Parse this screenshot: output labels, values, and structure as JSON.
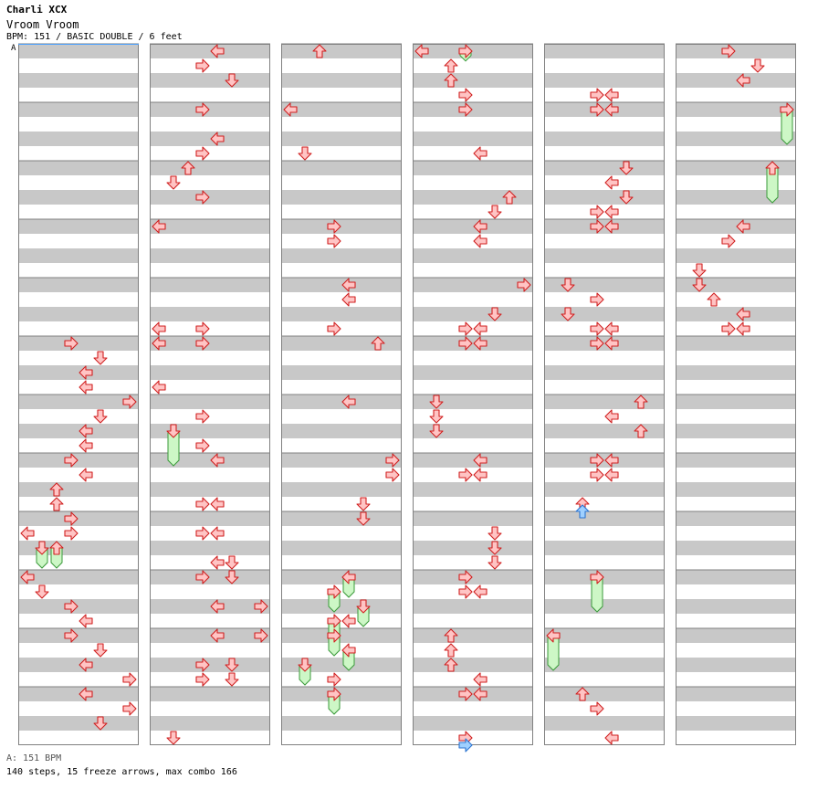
{
  "song": {
    "artist": "Charli XCX",
    "title": "Vroom Vroom",
    "info": "BPM: 151 / BASIC DOUBLE / 6 feet"
  },
  "bpm_marker": "A",
  "footer": {
    "bpm_legend": "A: 151 BPM",
    "stats": "140 steps, 15 freeze arrows, max combo 166"
  },
  "colors": {
    "tap_fill": "#ffc4c4",
    "tap_stroke": "#d02020",
    "freeze_fill": "#cdf7c6",
    "freeze_stroke": "#3a9a3a",
    "alt_fill": "#9fd0ff",
    "alt_stroke": "#2c74d0",
    "band_grey": "#c8c8c8",
    "border": "#808080",
    "bpm_line": "#4aa0ff"
  },
  "chart_data": {
    "type": "step-chart",
    "mode": "BASIC DOUBLE",
    "columns": 6,
    "measures_per_column": 12,
    "lanes": [
      "left",
      "down",
      "up",
      "right",
      "left",
      "down",
      "up",
      "right"
    ],
    "notes": [
      {
        "c": 0,
        "m": 5,
        "b": 0,
        "l": 3
      },
      {
        "c": 0,
        "m": 5,
        "b": 1,
        "l": 5
      },
      {
        "c": 0,
        "m": 5,
        "b": 2,
        "l": 4
      },
      {
        "c": 0,
        "m": 5,
        "b": 3,
        "l": 4
      },
      {
        "c": 0,
        "m": 6,
        "b": 0,
        "l": 7
      },
      {
        "c": 0,
        "m": 6,
        "b": 1,
        "l": 5
      },
      {
        "c": 0,
        "m": 6,
        "b": 2,
        "l": 4
      },
      {
        "c": 0,
        "m": 6,
        "b": 3,
        "l": 4
      },
      {
        "c": 0,
        "m": 7,
        "b": 0,
        "l": 3
      },
      {
        "c": 0,
        "m": 7,
        "b": 1,
        "l": 4
      },
      {
        "c": 0,
        "m": 7,
        "b": 2,
        "l": 2
      },
      {
        "c": 0,
        "m": 7,
        "b": 3,
        "l": 2
      },
      {
        "c": 0,
        "m": 8,
        "b": 0,
        "l": 3
      },
      {
        "c": 0,
        "m": 8,
        "b": 1,
        "l": 0
      },
      {
        "c": 0,
        "m": 8,
        "b": 1,
        "l": 3
      },
      {
        "c": 0,
        "m": 8,
        "b": 2,
        "l": 1,
        "len": 1
      },
      {
        "c": 0,
        "m": 8,
        "b": 2,
        "l": 2,
        "len": 1
      },
      {
        "c": 0,
        "m": 9,
        "b": 0,
        "l": 0
      },
      {
        "c": 0,
        "m": 9,
        "b": 1,
        "l": 1
      },
      {
        "c": 0,
        "m": 9,
        "b": 2,
        "l": 3
      },
      {
        "c": 0,
        "m": 9,
        "b": 3,
        "l": 4
      },
      {
        "c": 0,
        "m": 10,
        "b": 0,
        "l": 3
      },
      {
        "c": 0,
        "m": 10,
        "b": 1,
        "l": 5
      },
      {
        "c": 0,
        "m": 10,
        "b": 2,
        "l": 4
      },
      {
        "c": 0,
        "m": 10,
        "b": 3,
        "l": 7
      },
      {
        "c": 0,
        "m": 11,
        "b": 0,
        "l": 4
      },
      {
        "c": 0,
        "m": 11,
        "b": 1,
        "l": 7
      },
      {
        "c": 0,
        "m": 11,
        "b": 2,
        "l": 5
      },
      {
        "c": 1,
        "m": 0,
        "b": 0,
        "l": 4
      },
      {
        "c": 1,
        "m": 0,
        "b": 1,
        "l": 3
      },
      {
        "c": 1,
        "m": 0,
        "b": 2,
        "l": 5
      },
      {
        "c": 1,
        "m": 1,
        "b": 0,
        "l": 3
      },
      {
        "c": 1,
        "m": 1,
        "b": 2,
        "l": 4
      },
      {
        "c": 1,
        "m": 1,
        "b": 3,
        "l": 3
      },
      {
        "c": 1,
        "m": 2,
        "b": 0,
        "l": 2
      },
      {
        "c": 1,
        "m": 2,
        "b": 1,
        "l": 1
      },
      {
        "c": 1,
        "m": 2,
        "b": 2,
        "l": 3
      },
      {
        "c": 1,
        "m": 3,
        "b": 0,
        "l": 0
      },
      {
        "c": 1,
        "m": 4,
        "b": 3,
        "l": 0
      },
      {
        "c": 1,
        "m": 4,
        "b": 3,
        "l": 3
      },
      {
        "c": 1,
        "m": 5,
        "b": 0,
        "l": 0
      },
      {
        "c": 1,
        "m": 5,
        "b": 0,
        "l": 3
      },
      {
        "c": 1,
        "m": 5,
        "b": 3,
        "l": 0
      },
      {
        "c": 1,
        "m": 6,
        "b": 1,
        "l": 3
      },
      {
        "c": 1,
        "m": 6,
        "b": 2,
        "l": 1,
        "len": 2
      },
      {
        "c": 1,
        "m": 6,
        "b": 3,
        "l": 3
      },
      {
        "c": 1,
        "m": 7,
        "b": 0,
        "l": 4
      },
      {
        "c": 1,
        "m": 7,
        "b": 3,
        "l": 3
      },
      {
        "c": 1,
        "m": 7,
        "b": 3,
        "l": 4
      },
      {
        "c": 1,
        "m": 8,
        "b": 1,
        "l": 3
      },
      {
        "c": 1,
        "m": 8,
        "b": 1,
        "l": 4
      },
      {
        "c": 1,
        "m": 8,
        "b": 3,
        "l": 4
      },
      {
        "c": 1,
        "m": 8,
        "b": 3,
        "l": 5
      },
      {
        "c": 1,
        "m": 9,
        "b": 0,
        "l": 3
      },
      {
        "c": 1,
        "m": 9,
        "b": 0,
        "l": 5
      },
      {
        "c": 1,
        "m": 9,
        "b": 2,
        "l": 4
      },
      {
        "c": 1,
        "m": 9,
        "b": 2,
        "l": 7
      },
      {
        "c": 1,
        "m": 10,
        "b": 0,
        "l": 4
      },
      {
        "c": 1,
        "m": 10,
        "b": 0,
        "l": 7
      },
      {
        "c": 1,
        "m": 10,
        "b": 2,
        "l": 3
      },
      {
        "c": 1,
        "m": 10,
        "b": 2,
        "l": 5
      },
      {
        "c": 1,
        "m": 10,
        "b": 3,
        "l": 3
      },
      {
        "c": 1,
        "m": 10,
        "b": 3,
        "l": 5
      },
      {
        "c": 1,
        "m": 11,
        "b": 3,
        "l": 1
      },
      {
        "c": 2,
        "m": 0,
        "b": 0,
        "l": 2
      },
      {
        "c": 2,
        "m": 1,
        "b": 0,
        "l": 0
      },
      {
        "c": 2,
        "m": 1,
        "b": 3,
        "l": 1
      },
      {
        "c": 2,
        "m": 3,
        "b": 0,
        "l": 3
      },
      {
        "c": 2,
        "m": 3,
        "b": 1,
        "l": 3
      },
      {
        "c": 2,
        "m": 4,
        "b": 0,
        "l": 4
      },
      {
        "c": 2,
        "m": 4,
        "b": 1,
        "l": 4
      },
      {
        "c": 2,
        "m": 4,
        "b": 3,
        "l": 3
      },
      {
        "c": 2,
        "m": 5,
        "b": 0,
        "l": 6
      },
      {
        "c": 2,
        "m": 6,
        "b": 0,
        "l": 4
      },
      {
        "c": 2,
        "m": 7,
        "b": 0,
        "l": 7
      },
      {
        "c": 2,
        "m": 7,
        "b": 1,
        "l": 7
      },
      {
        "c": 2,
        "m": 7,
        "b": 3,
        "l": 5
      },
      {
        "c": 2,
        "m": 8,
        "b": 0,
        "l": 5
      },
      {
        "c": 2,
        "m": 9,
        "b": 0,
        "l": 4,
        "len": 1
      },
      {
        "c": 2,
        "m": 9,
        "b": 1,
        "l": 3,
        "len": 1
      },
      {
        "c": 2,
        "m": 9,
        "b": 2,
        "l": 5,
        "len": 1
      },
      {
        "c": 2,
        "m": 9,
        "b": 3,
        "l": 3,
        "len": 1
      },
      {
        "c": 2,
        "m": 9,
        "b": 3,
        "l": 4
      },
      {
        "c": 2,
        "m": 10,
        "b": 0,
        "l": 3,
        "len": 1
      },
      {
        "c": 2,
        "m": 10,
        "b": 1,
        "l": 4,
        "len": 1
      },
      {
        "c": 2,
        "m": 10,
        "b": 2,
        "l": 1,
        "len": 1
      },
      {
        "c": 2,
        "m": 10,
        "b": 3,
        "l": 3
      },
      {
        "c": 2,
        "m": 10,
        "b": 4,
        "l": 3,
        "len": 1
      },
      {
        "c": 3,
        "m": 0,
        "b": 0,
        "l": 0
      },
      {
        "c": 3,
        "m": 0,
        "b": 0,
        "l": 3,
        "len": 0.3
      },
      {
        "c": 3,
        "m": 0,
        "b": 1,
        "l": 2
      },
      {
        "c": 3,
        "m": 0,
        "b": 2,
        "l": 2
      },
      {
        "c": 3,
        "m": 0,
        "b": 3,
        "l": 3
      },
      {
        "c": 3,
        "m": 1,
        "b": 0,
        "l": 3
      },
      {
        "c": 3,
        "m": 1,
        "b": 3,
        "l": 4
      },
      {
        "c": 3,
        "m": 2,
        "b": 2,
        "l": 6
      },
      {
        "c": 3,
        "m": 2,
        "b": 3,
        "l": 5
      },
      {
        "c": 3,
        "m": 3,
        "b": 0,
        "l": 4
      },
      {
        "c": 3,
        "m": 3,
        "b": 1,
        "l": 4
      },
      {
        "c": 3,
        "m": 4,
        "b": 0,
        "l": 7
      },
      {
        "c": 3,
        "m": 4,
        "b": 2,
        "l": 5
      },
      {
        "c": 3,
        "m": 4,
        "b": 3,
        "l": 3
      },
      {
        "c": 3,
        "m": 4,
        "b": 3,
        "l": 4
      },
      {
        "c": 3,
        "m": 5,
        "b": 0,
        "l": 3
      },
      {
        "c": 3,
        "m": 5,
        "b": 0,
        "l": 4
      },
      {
        "c": 3,
        "m": 6,
        "b": 0,
        "l": 1
      },
      {
        "c": 3,
        "m": 6,
        "b": 1,
        "l": 1
      },
      {
        "c": 3,
        "m": 6,
        "b": 2,
        "l": 1
      },
      {
        "c": 3,
        "m": 7,
        "b": 0,
        "l": 4
      },
      {
        "c": 3,
        "m": 7,
        "b": 1,
        "l": 3
      },
      {
        "c": 3,
        "m": 7,
        "b": 1,
        "l": 4
      },
      {
        "c": 3,
        "m": 8,
        "b": 1,
        "l": 5
      },
      {
        "c": 3,
        "m": 8,
        "b": 2,
        "l": 5
      },
      {
        "c": 3,
        "m": 8,
        "b": 3,
        "l": 5
      },
      {
        "c": 3,
        "m": 9,
        "b": 0,
        "l": 3
      },
      {
        "c": 3,
        "m": 9,
        "b": 1,
        "l": 3
      },
      {
        "c": 3,
        "m": 9,
        "b": 1,
        "l": 4
      },
      {
        "c": 3,
        "m": 10,
        "b": 0,
        "l": 2
      },
      {
        "c": 3,
        "m": 10,
        "b": 1,
        "l": 2
      },
      {
        "c": 3,
        "m": 10,
        "b": 2,
        "l": 2
      },
      {
        "c": 3,
        "m": 10,
        "b": 3,
        "l": 4
      },
      {
        "c": 3,
        "m": 11,
        "b": 0,
        "l": 3
      },
      {
        "c": 3,
        "m": 11,
        "b": 0,
        "l": 4
      },
      {
        "c": 3,
        "m": 11,
        "b": 3,
        "l": 3
      },
      {
        "c": 3,
        "m": 11,
        "b": 3.5,
        "l": 3,
        "alt": true
      },
      {
        "c": 4,
        "m": 0,
        "b": 3,
        "l": 3
      },
      {
        "c": 4,
        "m": 0,
        "b": 3,
        "l": 4
      },
      {
        "c": 4,
        "m": 1,
        "b": 0,
        "l": 3
      },
      {
        "c": 4,
        "m": 1,
        "b": 0,
        "l": 4
      },
      {
        "c": 4,
        "m": 2,
        "b": 0,
        "l": 5
      },
      {
        "c": 4,
        "m": 2,
        "b": 1,
        "l": 4
      },
      {
        "c": 4,
        "m": 2,
        "b": 2,
        "l": 5
      },
      {
        "c": 4,
        "m": 2,
        "b": 3,
        "l": 3
      },
      {
        "c": 4,
        "m": 2,
        "b": 3,
        "l": 4
      },
      {
        "c": 4,
        "m": 3,
        "b": 0,
        "l": 3
      },
      {
        "c": 4,
        "m": 3,
        "b": 0,
        "l": 4
      },
      {
        "c": 4,
        "m": 4,
        "b": 0,
        "l": 1
      },
      {
        "c": 4,
        "m": 4,
        "b": 1,
        "l": 3
      },
      {
        "c": 4,
        "m": 4,
        "b": 2,
        "l": 1
      },
      {
        "c": 4,
        "m": 4,
        "b": 3,
        "l": 3
      },
      {
        "c": 4,
        "m": 4,
        "b": 3,
        "l": 4
      },
      {
        "c": 4,
        "m": 5,
        "b": 0,
        "l": 3
      },
      {
        "c": 4,
        "m": 5,
        "b": 0,
        "l": 4
      },
      {
        "c": 4,
        "m": 6,
        "b": 0,
        "l": 6
      },
      {
        "c": 4,
        "m": 6,
        "b": 1,
        "l": 4
      },
      {
        "c": 4,
        "m": 6,
        "b": 2,
        "l": 6
      },
      {
        "c": 4,
        "m": 7,
        "b": 0,
        "l": 3
      },
      {
        "c": 4,
        "m": 7,
        "b": 0,
        "l": 4
      },
      {
        "c": 4,
        "m": 7,
        "b": 1,
        "l": 3
      },
      {
        "c": 4,
        "m": 7,
        "b": 1,
        "l": 4
      },
      {
        "c": 4,
        "m": 7,
        "b": 3,
        "l": 2
      },
      {
        "c": 4,
        "m": 7,
        "b": 3.5,
        "l": 2,
        "alt": true
      },
      {
        "c": 4,
        "m": 9,
        "b": 0,
        "l": 3,
        "len": 2
      },
      {
        "c": 4,
        "m": 10,
        "b": 0,
        "l": 0,
        "len": 2
      },
      {
        "c": 4,
        "m": 11,
        "b": 0,
        "l": 2
      },
      {
        "c": 4,
        "m": 11,
        "b": 1,
        "l": 3
      },
      {
        "c": 4,
        "m": 11,
        "b": 3,
        "l": 4
      },
      {
        "c": 5,
        "m": 0,
        "b": 0,
        "l": 3
      },
      {
        "c": 5,
        "m": 0,
        "b": 1,
        "l": 5
      },
      {
        "c": 5,
        "m": 0,
        "b": 2,
        "l": 4
      },
      {
        "c": 5,
        "m": 1,
        "b": 0,
        "l": 7,
        "len": 2
      },
      {
        "c": 5,
        "m": 2,
        "b": 0,
        "l": 6,
        "len": 2
      },
      {
        "c": 5,
        "m": 3,
        "b": 0,
        "l": 4
      },
      {
        "c": 5,
        "m": 3,
        "b": 1,
        "l": 3
      },
      {
        "c": 5,
        "m": 3,
        "b": 3,
        "l": 1
      },
      {
        "c": 5,
        "m": 4,
        "b": 0,
        "l": 1
      },
      {
        "c": 5,
        "m": 4,
        "b": 1,
        "l": 2
      },
      {
        "c": 5,
        "m": 4,
        "b": 2,
        "l": 4
      },
      {
        "c": 5,
        "m": 4,
        "b": 3,
        "l": 3
      },
      {
        "c": 5,
        "m": 4,
        "b": 3,
        "l": 4
      }
    ]
  }
}
